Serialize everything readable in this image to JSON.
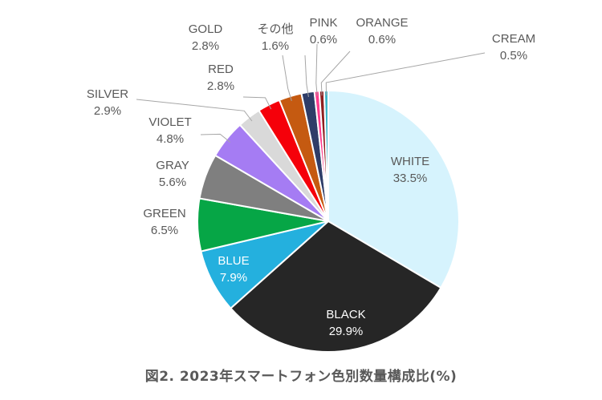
{
  "chart_data": {
    "type": "pie",
    "title": "図2. 2023年スマートフォン色別数量構成比(%)",
    "unit": "%",
    "slices": [
      {
        "label": "WHITE",
        "value": 33.5,
        "display": "33.5%",
        "color": "#d6f3fd"
      },
      {
        "label": "BLACK",
        "value": 29.9,
        "display": "29.9%",
        "color": "#262626"
      },
      {
        "label": "BLUE",
        "value": 7.9,
        "display": "7.9%",
        "color": "#24b0de"
      },
      {
        "label": "GREEN",
        "value": 6.5,
        "display": "6.5%",
        "color": "#06a646"
      },
      {
        "label": "GRAY",
        "value": 5.6,
        "display": "5.6%",
        "color": "#7f7f7f"
      },
      {
        "label": "VIOLET",
        "value": 4.8,
        "display": "4.8%",
        "color": "#a57cf3"
      },
      {
        "label": "SILVER",
        "value": 2.9,
        "display": "2.9%",
        "color": "#d9d9d9"
      },
      {
        "label": "RED",
        "value": 2.8,
        "display": "2.8%",
        "color": "#f5000a"
      },
      {
        "label": "GOLD",
        "value": 2.8,
        "display": "2.8%",
        "color": "#c55a11"
      },
      {
        "label": "その他",
        "value": 1.6,
        "display": "1.6%",
        "color": "#2f3d68"
      },
      {
        "label": "PINK",
        "value": 0.6,
        "display": "0.6%",
        "color": "#ff3b8d"
      },
      {
        "label": "ORANGE",
        "value": 0.6,
        "display": "0.6%",
        "color": "#8f1f1f"
      },
      {
        "label": "CREAM",
        "value": 0.5,
        "display": "0.5%",
        "color": "#3fb6c8"
      }
    ]
  }
}
